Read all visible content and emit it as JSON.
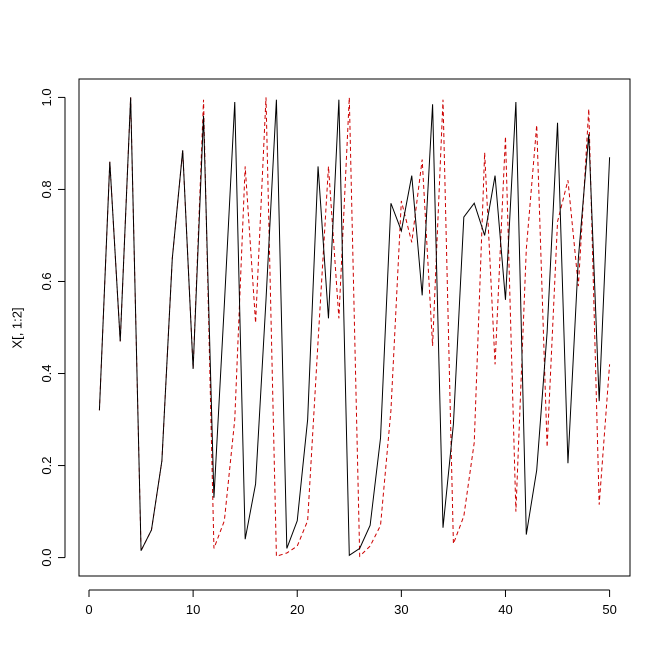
{
  "chart_data": {
    "type": "line",
    "y_label": "X[, 1:2]",
    "x": [
      1,
      2,
      3,
      4,
      5,
      6,
      7,
      8,
      9,
      10,
      11,
      12,
      13,
      14,
      15,
      16,
      17,
      18,
      19,
      20,
      21,
      22,
      23,
      24,
      25,
      26,
      27,
      28,
      29,
      30,
      31,
      32,
      33,
      34,
      35,
      36,
      37,
      38,
      39,
      40,
      41,
      42,
      43,
      44,
      45,
      46,
      47,
      48,
      49,
      50
    ],
    "series": [
      {
        "color": "#000000",
        "dashed": false,
        "values": [
          0.32,
          0.86,
          0.47,
          1.0,
          0.015,
          0.06,
          0.21,
          0.65,
          0.885,
          0.41,
          0.96,
          0.13,
          0.55,
          0.99,
          0.04,
          0.16,
          0.56,
          0.995,
          0.02,
          0.08,
          0.3,
          0.85,
          0.52,
          0.995,
          0.005,
          0.02,
          0.07,
          0.26,
          0.77,
          0.71,
          0.83,
          0.57,
          0.985,
          0.065,
          0.29,
          0.74,
          0.77,
          0.7,
          0.83,
          0.56,
          0.99,
          0.05,
          0.19,
          0.49,
          0.945,
          0.205,
          0.65,
          0.92,
          0.34,
          0.87
        ]
      },
      {
        "color": "#cc0000",
        "dashed": true,
        "values": [
          0.32,
          0.86,
          0.47,
          1.0,
          0.015,
          0.06,
          0.21,
          0.65,
          0.885,
          0.41,
          0.995,
          0.02,
          0.08,
          0.3,
          0.85,
          0.51,
          1.0,
          0.003,
          0.01,
          0.025,
          0.08,
          0.47,
          0.85,
          0.52,
          1.0,
          0.003,
          0.025,
          0.07,
          0.32,
          0.775,
          0.685,
          0.865,
          0.46,
          0.995,
          0.03,
          0.09,
          0.25,
          0.88,
          0.42,
          0.915,
          0.1,
          0.67,
          0.94,
          0.24,
          0.73,
          0.82,
          0.59,
          0.975,
          0.115,
          0.42
        ]
      }
    ],
    "xlim": [
      -0.96,
      51.96
    ],
    "ylim": [
      -0.04,
      1.04
    ],
    "xticks": [
      0,
      10,
      20,
      30,
      40,
      50
    ],
    "yticks": [
      {
        "value": 0,
        "label": "0.0"
      },
      0.2,
      0.4,
      0.6,
      0.8,
      {
        "value": 1,
        "label": "1.0"
      }
    ],
    "grid": false
  }
}
